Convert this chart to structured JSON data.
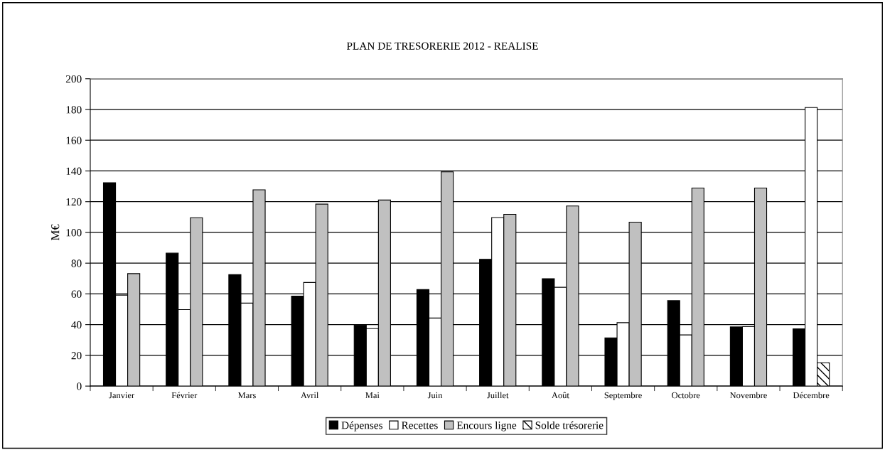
{
  "chart_data": {
    "type": "bar",
    "title": "PLAN DE TRESORERIE 2012 - REALISE",
    "ylabel": "M€",
    "categories": [
      "Janvier",
      "Février",
      "Mars",
      "Avril",
      "Mai",
      "Juin",
      "Juillet",
      "Août",
      "Septembre",
      "Octobre",
      "Novembre",
      "Décembre"
    ],
    "series": [
      {
        "name": "Dépenses",
        "color": "#000000",
        "values": [
          132.3,
          86.5,
          72.5,
          58.5,
          39.7,
          62.8,
          82.5,
          69.9,
          31.4,
          55.6,
          38.5,
          37.3
        ]
      },
      {
        "name": "Recettes",
        "color": "#ffffff",
        "values": [
          59.2,
          49.8,
          54,
          67.4,
          37.4,
          44.3,
          109.7,
          64.3,
          41.3,
          33.3,
          38.7,
          181.3
        ]
      },
      {
        "name": "Encours ligne",
        "color": "#c0c0c0",
        "values": [
          73.2,
          109.6,
          127.7,
          118.4,
          121.1,
          139.4,
          111.8,
          117.2,
          106.7,
          128.9,
          128.9,
          null
        ]
      },
      {
        "name": "Solde trésorerie",
        "color": "#000000",
        "values": [
          null,
          null,
          null,
          null,
          null,
          null,
          null,
          null,
          null,
          null,
          null,
          15.2
        ]
      }
    ],
    "ylim": [
      0,
      200
    ],
    "yticks": [
      0,
      20,
      40,
      60,
      80,
      100,
      120,
      140,
      160,
      180,
      200
    ],
    "grid": "y",
    "legend": "bottom"
  }
}
